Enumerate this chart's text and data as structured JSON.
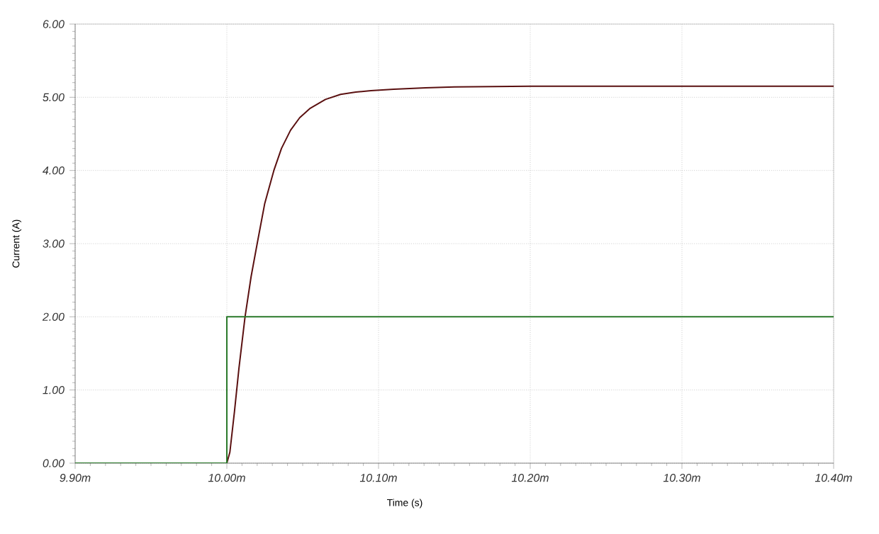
{
  "chart_data": {
    "type": "line",
    "xlabel": "Time (s)",
    "ylabel": "Current (A)",
    "xlim": [
      9.9,
      10.4
    ],
    "ylim": [
      0,
      6
    ],
    "xticks": [
      {
        "value": 9.9,
        "label": "9.90m"
      },
      {
        "value": 10.0,
        "label": "10.00m"
      },
      {
        "value": 10.1,
        "label": "10.10m"
      },
      {
        "value": 10.2,
        "label": "10.20m"
      },
      {
        "value": 10.3,
        "label": "10.30m"
      },
      {
        "value": 10.4,
        "label": "10.40m"
      }
    ],
    "yticks": [
      {
        "value": 0,
        "label": "0.00"
      },
      {
        "value": 1,
        "label": "1.00"
      },
      {
        "value": 2,
        "label": "2.00"
      },
      {
        "value": 3,
        "label": "3.00"
      },
      {
        "value": 4,
        "label": "4.00"
      },
      {
        "value": 5,
        "label": "5.00"
      },
      {
        "value": 6,
        "label": "6.00"
      }
    ],
    "grid": true,
    "marker": "none",
    "line_style": "solid",
    "series": [
      {
        "color": "#5a1010",
        "x": [
          9.9,
          10.0,
          10.002,
          10.005,
          10.008,
          10.012,
          10.016,
          10.02,
          10.025,
          10.031,
          10.036,
          10.042,
          10.048,
          10.055,
          10.065,
          10.075,
          10.085,
          10.095,
          10.11,
          10.131,
          10.15,
          10.2,
          10.4
        ],
        "values": [
          0,
          0,
          0.15,
          0.7,
          1.3,
          2.0,
          2.55,
          3.0,
          3.55,
          4.0,
          4.3,
          4.55,
          4.72,
          4.85,
          4.97,
          5.04,
          5.07,
          5.09,
          5.11,
          5.13,
          5.14,
          5.15,
          5.15
        ]
      },
      {
        "color": "#2a7a2a",
        "type": "step",
        "x": [
          9.9,
          10.0,
          10.4
        ],
        "values": [
          0,
          2,
          2
        ]
      }
    ]
  }
}
